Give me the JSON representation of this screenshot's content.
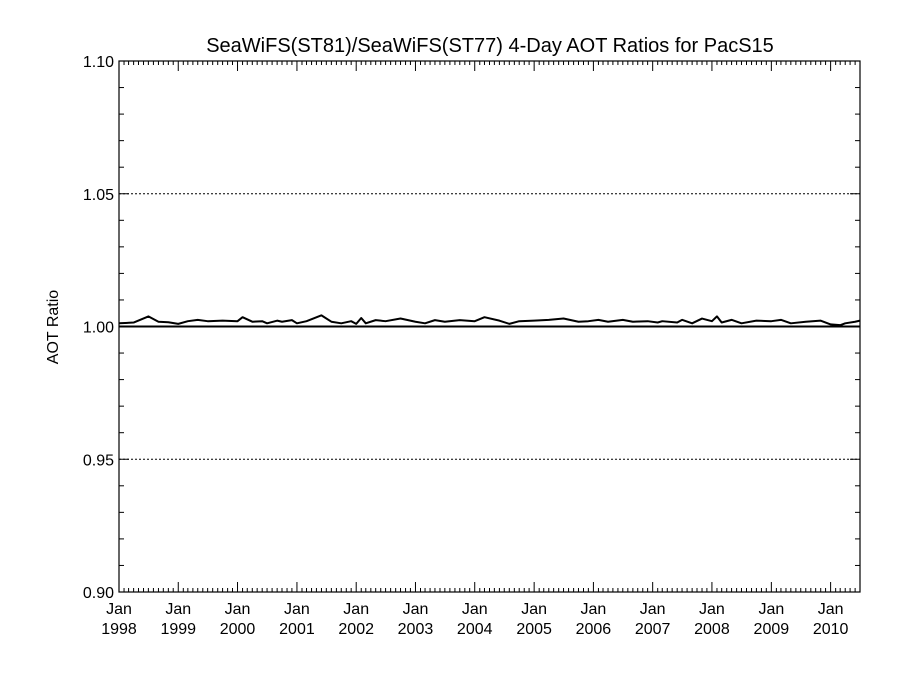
{
  "chart_data": {
    "type": "line",
    "title": "SeaWiFS(ST81)/SeaWiFS(ST77) 4-Day AOT Ratios for PacS15",
    "xlabel": "",
    "ylabel": "AOT Ratio",
    "xlim": [
      "1998-01-01",
      "2010-07-01"
    ],
    "ylim": [
      0.9,
      1.1
    ],
    "y_ticks": [
      "0.90",
      "0.95",
      "1.00",
      "1.05",
      "1.10"
    ],
    "x_ticks": [
      {
        "date": "1998-01-01",
        "line1": "Jan",
        "line2": "1998"
      },
      {
        "date": "1999-01-01",
        "line1": "Jan",
        "line2": "1999"
      },
      {
        "date": "2000-01-01",
        "line1": "Jan",
        "line2": "2000"
      },
      {
        "date": "2001-01-01",
        "line1": "Jan",
        "line2": "2001"
      },
      {
        "date": "2002-01-01",
        "line1": "Jan",
        "line2": "2002"
      },
      {
        "date": "2003-01-01",
        "line1": "Jan",
        "line2": "2003"
      },
      {
        "date": "2004-01-01",
        "line1": "Jan",
        "line2": "2004"
      },
      {
        "date": "2005-01-01",
        "line1": "Jan",
        "line2": "2005"
      },
      {
        "date": "2006-01-01",
        "line1": "Jan",
        "line2": "2006"
      },
      {
        "date": "2007-01-01",
        "line1": "Jan",
        "line2": "2007"
      },
      {
        "date": "2008-01-01",
        "line1": "Jan",
        "line2": "2008"
      },
      {
        "date": "2009-01-01",
        "line1": "Jan",
        "line2": "2009"
      },
      {
        "date": "2010-01-01",
        "line1": "Jan",
        "line2": "2010"
      }
    ],
    "gridlines_y": [
      0.95,
      1.05
    ],
    "reference_line": 1.0,
    "series": [
      {
        "color": "#000000",
        "points": [
          [
            "1998-01-01",
            1.0012
          ],
          [
            "1998-04-01",
            1.0015
          ],
          [
            "1998-07-01",
            1.0038
          ],
          [
            "1998-09-01",
            1.0018
          ],
          [
            "1998-11-01",
            1.0016
          ],
          [
            "1999-01-01",
            1.001
          ],
          [
            "1999-03-01",
            1.002
          ],
          [
            "1999-05-01",
            1.0025
          ],
          [
            "1999-07-01",
            1.002
          ],
          [
            "1999-10-01",
            1.0022
          ],
          [
            "2000-01-01",
            1.002
          ],
          [
            "2000-02-01",
            1.0035
          ],
          [
            "2000-04-01",
            1.0018
          ],
          [
            "2000-06-01",
            1.002
          ],
          [
            "2000-07-01",
            1.0012
          ],
          [
            "2000-09-01",
            1.0022
          ],
          [
            "2000-10-01",
            1.0018
          ],
          [
            "2000-12-01",
            1.0024
          ],
          [
            "2001-01-01",
            1.0012
          ],
          [
            "2001-03-01",
            1.002
          ],
          [
            "2001-06-01",
            1.0042
          ],
          [
            "2001-08-01",
            1.0018
          ],
          [
            "2001-10-01",
            1.0012
          ],
          [
            "2001-12-01",
            1.002
          ],
          [
            "2002-01-01",
            1.001
          ],
          [
            "2002-02-01",
            1.0032
          ],
          [
            "2002-03-01",
            1.0012
          ],
          [
            "2002-05-01",
            1.0024
          ],
          [
            "2002-07-01",
            1.002
          ],
          [
            "2002-10-01",
            1.003
          ],
          [
            "2003-01-01",
            1.0018
          ],
          [
            "2003-03-01",
            1.0012
          ],
          [
            "2003-05-01",
            1.0024
          ],
          [
            "2003-07-01",
            1.0018
          ],
          [
            "2003-10-01",
            1.0024
          ],
          [
            "2004-01-01",
            1.002
          ],
          [
            "2004-03-01",
            1.0035
          ],
          [
            "2004-06-01",
            1.0022
          ],
          [
            "2004-08-01",
            1.001
          ],
          [
            "2004-10-01",
            1.002
          ],
          [
            "2005-01-01",
            1.0022
          ],
          [
            "2005-04-01",
            1.0025
          ],
          [
            "2005-07-01",
            1.003
          ],
          [
            "2005-10-01",
            1.0018
          ],
          [
            "2005-12-01",
            1.002
          ],
          [
            "2006-02-01",
            1.0025
          ],
          [
            "2006-04-01",
            1.0018
          ],
          [
            "2006-07-01",
            1.0025
          ],
          [
            "2006-09-01",
            1.0018
          ],
          [
            "2006-12-01",
            1.002
          ],
          [
            "2007-02-01",
            1.0015
          ],
          [
            "2007-03-01",
            1.002
          ],
          [
            "2007-06-01",
            1.0015
          ],
          [
            "2007-07-01",
            1.0025
          ],
          [
            "2007-09-01",
            1.0012
          ],
          [
            "2007-11-01",
            1.003
          ],
          [
            "2008-01-01",
            1.002
          ],
          [
            "2008-02-01",
            1.0038
          ],
          [
            "2008-03-01",
            1.0015
          ],
          [
            "2008-05-01",
            1.0025
          ],
          [
            "2008-07-01",
            1.0012
          ],
          [
            "2008-10-01",
            1.0022
          ],
          [
            "2009-01-01",
            1.002
          ],
          [
            "2009-03-01",
            1.0025
          ],
          [
            "2009-05-01",
            1.0012
          ],
          [
            "2009-08-01",
            1.0018
          ],
          [
            "2009-11-01",
            1.0022
          ],
          [
            "2010-01-01",
            1.0008
          ],
          [
            "2010-03-01",
            1.0005
          ],
          [
            "2010-04-01",
            1.0012
          ],
          [
            "2010-06-01",
            1.0018
          ],
          [
            "2010-07-01",
            1.0022
          ]
        ]
      }
    ]
  }
}
